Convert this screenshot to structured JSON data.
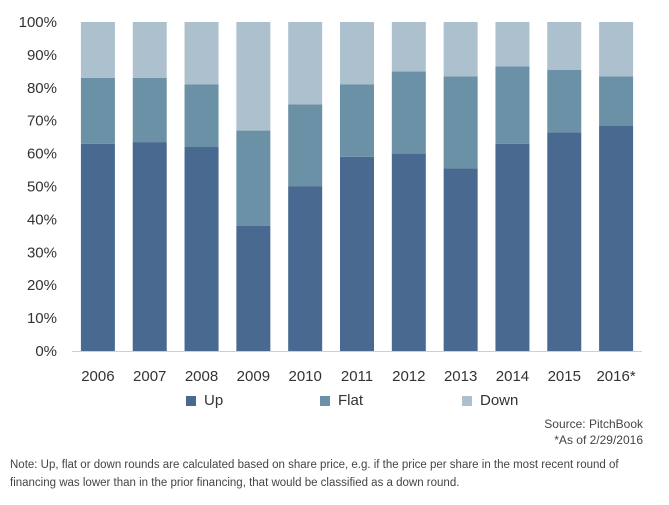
{
  "chart_data": {
    "type": "bar",
    "stacked": true,
    "categories": [
      "2006",
      "2007",
      "2008",
      "2009",
      "2010",
      "2011",
      "2012",
      "2013",
      "2014",
      "2015",
      "2016*"
    ],
    "series": [
      {
        "name": "Up",
        "color": "#4a6990",
        "values": [
          63,
          63.5,
          62,
          38,
          50,
          59,
          60,
          55.5,
          63,
          66.5,
          68.5
        ]
      },
      {
        "name": "Flat",
        "color": "#6b91a6",
        "values": [
          20,
          19.5,
          19,
          29,
          25,
          22,
          25,
          28,
          23.5,
          19,
          15
        ]
      },
      {
        "name": "Down",
        "color": "#adc0cd",
        "values": [
          17,
          17,
          19,
          33,
          25,
          19,
          15,
          16.5,
          13.5,
          14.5,
          16.5
        ]
      }
    ],
    "yticks": [
      "0%",
      "10%",
      "20%",
      "30%",
      "40%",
      "50%",
      "60%",
      "70%",
      "80%",
      "90%",
      "100%"
    ],
    "ylim": [
      0,
      100
    ],
    "grid": false,
    "legend_position": "bottom"
  },
  "source": "Source: PitchBook",
  "as_of": "*As of 2/29/2016",
  "note": "Note: Up, flat or down rounds are calculated based on share price, e.g. if the price per share in the most recent round of financing was lower than in the prior financing, that would be classified as a down round."
}
